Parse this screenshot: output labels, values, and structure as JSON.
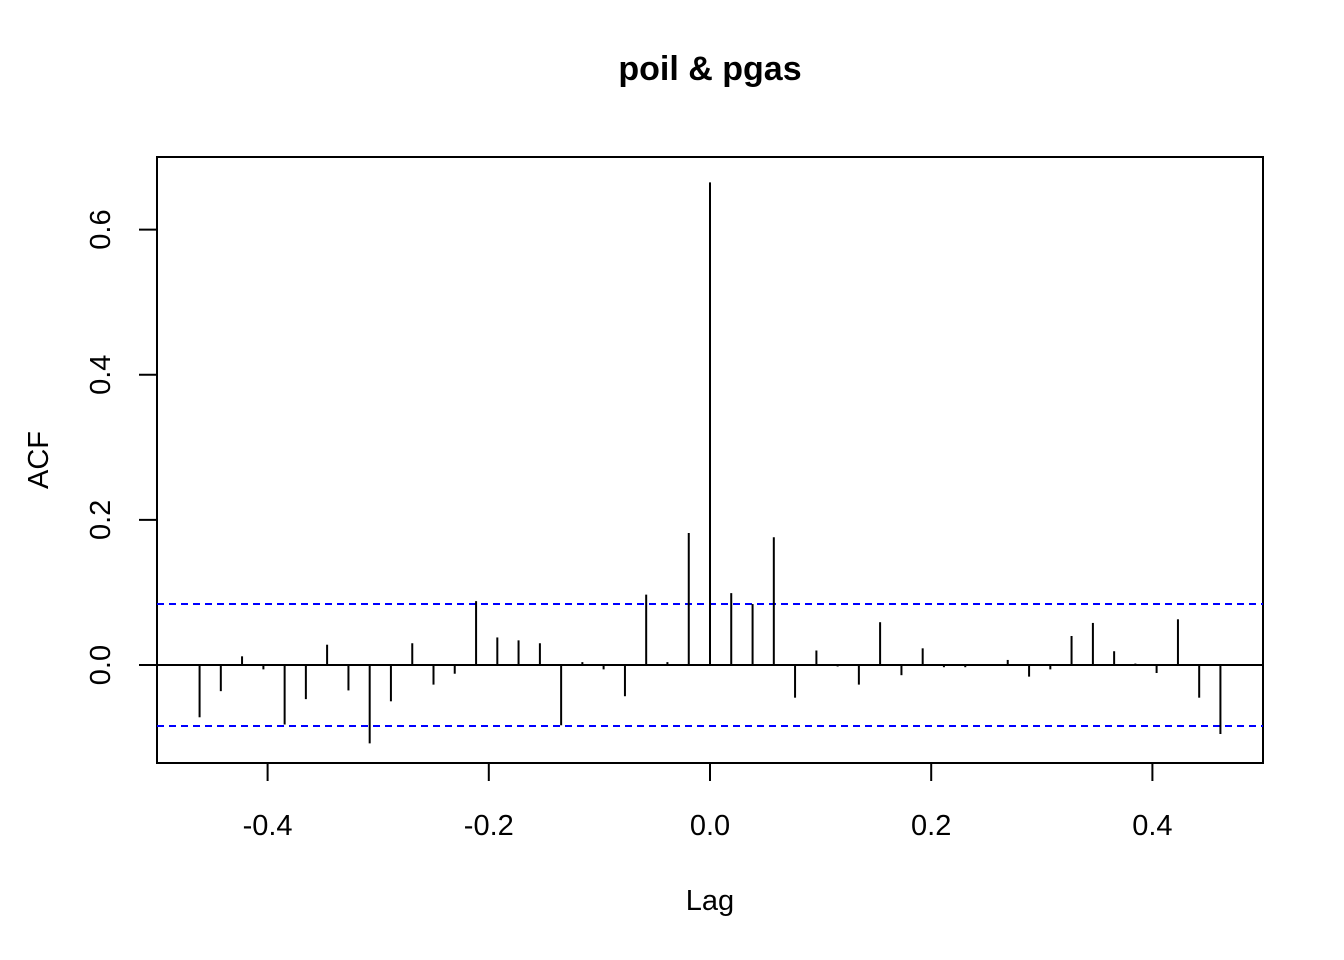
{
  "chart_data": {
    "type": "bar",
    "subtype": "cross-correlation-function",
    "title": "poil & pgas",
    "xlabel": "Lag",
    "ylabel": "ACF",
    "xlim": [
      -0.5,
      0.5
    ],
    "ylim": [
      -0.135,
      0.7
    ],
    "x_ticks": [
      "-0.4",
      "-0.2",
      "0.0",
      "0.2",
      "0.4"
    ],
    "y_ticks": [
      "0.0",
      "0.2",
      "0.4",
      "0.6"
    ],
    "confidence_band": 0.084,
    "grid": false,
    "lags": [
      -0.4615,
      -0.4423,
      -0.4231,
      -0.4038,
      -0.3846,
      -0.3654,
      -0.3462,
      -0.3269,
      -0.3077,
      -0.2885,
      -0.2692,
      -0.25,
      -0.2308,
      -0.2115,
      -0.1923,
      -0.1731,
      -0.1538,
      -0.1346,
      -0.1154,
      -0.0962,
      -0.0769,
      -0.0577,
      -0.0385,
      -0.0192,
      0.0,
      0.0192,
      0.0385,
      0.0577,
      0.0769,
      0.0962,
      0.1154,
      0.1346,
      0.1538,
      0.1731,
      0.1923,
      0.2115,
      0.2308,
      0.25,
      0.2692,
      0.2885,
      0.3077,
      0.3269,
      0.3462,
      0.3654,
      0.3846,
      0.4038,
      0.4231,
      0.4423,
      0.4615
    ],
    "values": [
      -0.072,
      -0.036,
      0.012,
      -0.006,
      -0.082,
      -0.047,
      0.028,
      -0.035,
      -0.108,
      -0.05,
      0.03,
      -0.027,
      -0.012,
      0.088,
      0.038,
      0.034,
      0.03,
      -0.083,
      0.004,
      -0.006,
      -0.043,
      0.097,
      0.004,
      0.182,
      0.665,
      0.099,
      0.084,
      0.176,
      -0.045,
      0.02,
      -0.002,
      -0.027,
      0.059,
      -0.014,
      0.023,
      -0.003,
      -0.003,
      -0.001,
      0.007,
      -0.016,
      -0.006,
      0.04,
      0.058,
      0.019,
      0.002,
      -0.011,
      0.063,
      -0.045,
      -0.095
    ],
    "colors": {
      "spikes": "#000000",
      "confidence_lines": "#0000ff",
      "zero_line": "#000000"
    }
  }
}
